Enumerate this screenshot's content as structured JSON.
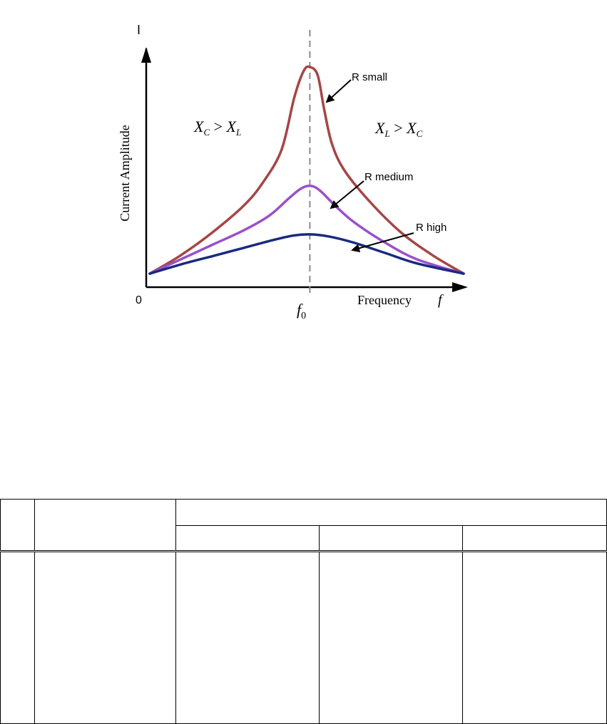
{
  "chart_data": {
    "type": "line",
    "y_axis_symbol": "I",
    "ylabel": "Current Amplitude",
    "xlabel": "Frequency",
    "x_axis_symbol": "f",
    "origin_label": "0",
    "resonance_label": "f",
    "resonance_subscript": "0",
    "region_labels": {
      "left": {
        "text": "X",
        "sub1": "C",
        "op": " > ",
        "text2": "X",
        "sub2": "L"
      },
      "right": {
        "text": "X",
        "sub1": "L",
        "op": " > ",
        "text2": "X",
        "sub2": "C"
      }
    },
    "x_range": [
      0,
      10
    ],
    "y_range": [
      0,
      10
    ],
    "resonance_x": 5.1,
    "series": [
      {
        "name": "R small",
        "color": "#a64545",
        "points": [
          [
            0,
            0
          ],
          [
            1,
            0.9
          ],
          [
            2,
            2.0
          ],
          [
            3,
            3.3
          ],
          [
            3.6,
            4.4
          ],
          [
            4.2,
            6.0
          ],
          [
            4.6,
            8.5
          ],
          [
            4.9,
            9.8
          ],
          [
            5.1,
            10.0
          ],
          [
            5.35,
            9.6
          ],
          [
            5.55,
            8.0
          ],
          [
            5.8,
            6.3
          ],
          [
            6.2,
            5.0
          ],
          [
            7.0,
            3.5
          ],
          [
            8.0,
            2.0
          ],
          [
            9.0,
            0.9
          ],
          [
            10,
            0
          ]
        ]
      },
      {
        "name": "R medium",
        "color": "#9a4fcc",
        "points": [
          [
            0,
            0
          ],
          [
            1,
            0.7
          ],
          [
            2,
            1.4
          ],
          [
            3,
            2.1
          ],
          [
            3.8,
            2.8
          ],
          [
            4.4,
            3.6
          ],
          [
            4.8,
            4.1
          ],
          [
            5.1,
            4.25
          ],
          [
            5.4,
            4.05
          ],
          [
            5.9,
            3.3
          ],
          [
            6.5,
            2.5
          ],
          [
            7.5,
            1.5
          ],
          [
            8.5,
            0.7
          ],
          [
            10,
            0
          ]
        ]
      },
      {
        "name": "R high",
        "color": "#1a2a80",
        "points": [
          [
            0,
            0
          ],
          [
            1,
            0.45
          ],
          [
            2,
            0.85
          ],
          [
            3,
            1.25
          ],
          [
            4,
            1.65
          ],
          [
            4.6,
            1.85
          ],
          [
            5.1,
            1.9
          ],
          [
            5.7,
            1.8
          ],
          [
            6.5,
            1.5
          ],
          [
            7.5,
            1.0
          ],
          [
            8.5,
            0.5
          ],
          [
            10,
            0
          ]
        ]
      }
    ]
  },
  "table": {
    "rows": 3,
    "columns": 5
  }
}
